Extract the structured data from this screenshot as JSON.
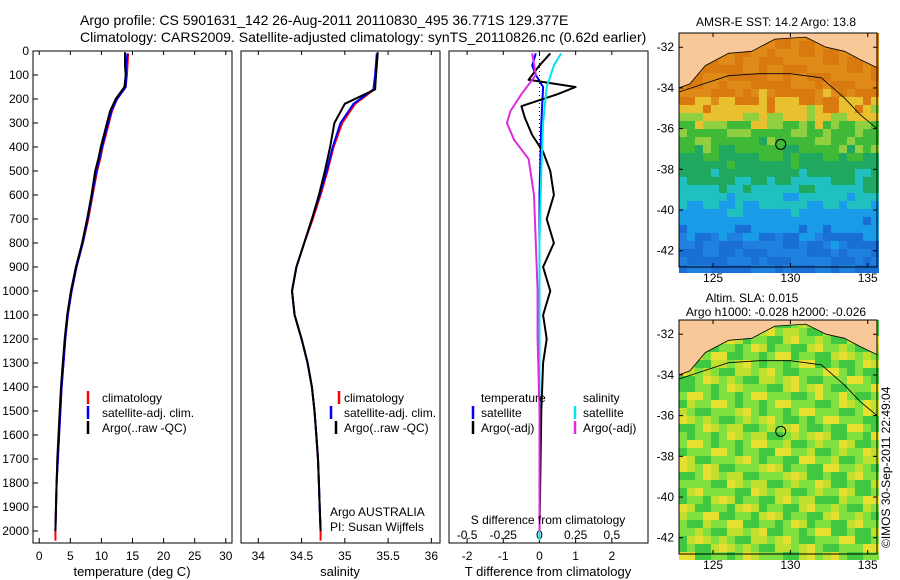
{
  "header": {
    "line1": "Argo profile: CS 5901631_142 26-Aug-2011 20110830_495 36.771S 129.377E",
    "line2": "Climatology: CARS2009. Satellite-adjusted climatology: synTS_20110826.nc (0.62d earlier)"
  },
  "colors": {
    "climatology": "#ff0000",
    "satellite": "#0000ff",
    "argo": "#000000",
    "diff_sat": "#00e5ee",
    "diff_argo": "#e02ae0",
    "land": "#f8c898"
  },
  "icons": {
    "timestamp": "text-rotated"
  },
  "credits": {
    "source": "Argo AUSTRALIA",
    "pi": "PI: Susan Wijffels",
    "timestamp": "©IMOS 30-Sep-2011 22:49:04"
  },
  "depth_ticks": [
    "0",
    "100",
    "200",
    "300",
    "400",
    "500",
    "600",
    "700",
    "800",
    "900",
    "1000",
    "1100",
    "1200",
    "1300",
    "1400",
    "1500",
    "1600",
    "1700",
    "1800",
    "1900",
    "2000"
  ],
  "maps": {
    "sst_title": "AMSR-E SST: 14.2 Argo: 13.8",
    "sla_title1": "Altim. SLA: 0.015",
    "sla_title2": "Argo h1000: -0.028 h2000: -0.026",
    "lat_ticks": [
      "-32",
      "-34",
      "-36",
      "-38",
      "-40",
      "-42"
    ],
    "lon_ticks": [
      "125",
      "130",
      "135"
    ]
  },
  "chart_data": [
    {
      "type": "line",
      "name": "temperature",
      "xlabel": "temperature (deg C)",
      "ylabel": "",
      "xlim": [
        -1,
        31
      ],
      "ylim": [
        2050,
        0
      ],
      "xticks": [
        "0",
        "5",
        "10",
        "15",
        "20",
        "25",
        "30"
      ],
      "legend": [
        "climatology",
        "satellite-adj. clim.",
        "Argo(..raw -QC)"
      ],
      "legend_position": "lower-center",
      "series": [
        {
          "name": "climatology",
          "color": "#ff0000",
          "points": [
            [
              14.3,
              10
            ],
            [
              14.2,
              60
            ],
            [
              14.1,
              100
            ],
            [
              13.9,
              150
            ],
            [
              12.5,
              200
            ],
            [
              11.7,
              250
            ],
            [
              11.2,
              300
            ],
            [
              10.7,
              350
            ],
            [
              10.2,
              400
            ],
            [
              9.8,
              450
            ],
            [
              9.3,
              500
            ],
            [
              8.6,
              600
            ],
            [
              7.9,
              700
            ],
            [
              7.0,
              800
            ],
            [
              6.0,
              900
            ],
            [
              5.2,
              1000
            ],
            [
              4.6,
              1100
            ],
            [
              4.2,
              1200
            ],
            [
              3.9,
              1300
            ],
            [
              3.6,
              1400
            ],
            [
              3.4,
              1500
            ],
            [
              3.2,
              1600
            ],
            [
              3.0,
              1700
            ],
            [
              2.8,
              1800
            ],
            [
              2.7,
              1900
            ],
            [
              2.6,
              2000
            ],
            [
              2.6,
              2040
            ]
          ]
        },
        {
          "name": "satellite-adj. clim.",
          "color": "#0000ff",
          "points": [
            [
              14.2,
              10
            ],
            [
              14.0,
              60
            ],
            [
              14.0,
              100
            ],
            [
              13.9,
              150
            ],
            [
              12.5,
              200
            ],
            [
              11.6,
              250
            ],
            [
              11.1,
              300
            ],
            [
              10.6,
              350
            ],
            [
              10.1,
              400
            ],
            [
              9.7,
              450
            ],
            [
              9.2,
              500
            ],
            [
              8.5,
              600
            ],
            [
              7.8,
              700
            ],
            [
              7.0,
              800
            ],
            [
              6.0,
              900
            ],
            [
              5.2,
              1000
            ],
            [
              4.6,
              1100
            ],
            [
              4.2,
              1200
            ],
            [
              3.9,
              1300
            ],
            [
              3.6,
              1400
            ],
            [
              3.4,
              1500
            ],
            [
              3.2,
              1600
            ],
            [
              3.0,
              1700
            ],
            [
              2.8,
              1800
            ],
            [
              2.7,
              1900
            ],
            [
              2.6,
              2000
            ]
          ]
        },
        {
          "name": "Argo(..raw -QC)",
          "color": "#000000",
          "points": [
            [
              13.8,
              5
            ],
            [
              13.8,
              60
            ],
            [
              13.9,
              100
            ],
            [
              13.7,
              150
            ],
            [
              12.3,
              200
            ],
            [
              11.4,
              250
            ],
            [
              10.9,
              300
            ],
            [
              10.4,
              350
            ],
            [
              9.9,
              400
            ],
            [
              9.5,
              450
            ],
            [
              9.0,
              500
            ],
            [
              8.4,
              600
            ],
            [
              7.7,
              700
            ],
            [
              6.9,
              800
            ],
            [
              5.9,
              900
            ],
            [
              5.1,
              1000
            ],
            [
              4.5,
              1100
            ],
            [
              4.1,
              1200
            ],
            [
              3.8,
              1300
            ],
            [
              3.5,
              1400
            ],
            [
              3.3,
              1500
            ],
            [
              3.1,
              1600
            ],
            [
              2.9,
              1700
            ],
            [
              2.8,
              1800
            ],
            [
              2.7,
              1900
            ],
            [
              2.6,
              2000
            ]
          ]
        }
      ]
    },
    {
      "type": "line",
      "name": "salinity",
      "xlabel": "salinity",
      "ylabel": "",
      "xlim": [
        33.8,
        36.1
      ],
      "ylim": [
        2050,
        0
      ],
      "xticks": [
        "34",
        "34.5",
        "35",
        "35.5",
        "36"
      ],
      "legend": [
        "climatology",
        "satellite-adj. clim.",
        "Argo(..raw -QC)"
      ],
      "legend_position": "lower-center",
      "series": [
        {
          "name": "climatology",
          "color": "#ff0000",
          "points": [
            [
              35.38,
              10
            ],
            [
              35.36,
              100
            ],
            [
              35.34,
              160
            ],
            [
              35.12,
              220
            ],
            [
              34.97,
              300
            ],
            [
              34.87,
              400
            ],
            [
              34.8,
              500
            ],
            [
              34.72,
              600
            ],
            [
              34.63,
              700
            ],
            [
              34.53,
              800
            ],
            [
              34.44,
              900
            ],
            [
              34.39,
              1000
            ],
            [
              34.42,
              1100
            ],
            [
              34.5,
              1200
            ],
            [
              34.57,
              1300
            ],
            [
              34.62,
              1400
            ],
            [
              34.65,
              1500
            ],
            [
              34.67,
              1600
            ],
            [
              34.69,
              1700
            ],
            [
              34.7,
              1800
            ],
            [
              34.71,
              1900
            ],
            [
              34.72,
              2000
            ],
            [
              34.72,
              2040
            ]
          ]
        },
        {
          "name": "satellite-adj. clim.",
          "color": "#0000ff",
          "points": [
            [
              35.37,
              10
            ],
            [
              35.35,
              100
            ],
            [
              35.33,
              160
            ],
            [
              35.1,
              220
            ],
            [
              34.95,
              300
            ],
            [
              34.86,
              400
            ],
            [
              34.79,
              500
            ],
            [
              34.71,
              600
            ],
            [
              34.62,
              700
            ],
            [
              34.53,
              800
            ],
            [
              34.44,
              900
            ],
            [
              34.39,
              1000
            ],
            [
              34.42,
              1100
            ],
            [
              34.5,
              1200
            ],
            [
              34.57,
              1300
            ],
            [
              34.62,
              1400
            ],
            [
              34.65,
              1500
            ],
            [
              34.67,
              1600
            ],
            [
              34.69,
              1700
            ],
            [
              34.7,
              1800
            ],
            [
              34.71,
              1900
            ],
            [
              34.72,
              2000
            ]
          ]
        },
        {
          "name": "Argo(..raw -QC)",
          "color": "#000000",
          "points": [
            [
              35.38,
              5
            ],
            [
              35.36,
              100
            ],
            [
              35.35,
              160
            ],
            [
              35.0,
              220
            ],
            [
              34.88,
              300
            ],
            [
              34.83,
              400
            ],
            [
              34.77,
              500
            ],
            [
              34.7,
              600
            ],
            [
              34.62,
              700
            ],
            [
              34.53,
              800
            ],
            [
              34.44,
              900
            ],
            [
              34.39,
              1000
            ],
            [
              34.42,
              1100
            ],
            [
              34.5,
              1200
            ],
            [
              34.57,
              1300
            ],
            [
              34.62,
              1400
            ],
            [
              34.65,
              1500
            ],
            [
              34.67,
              1600
            ],
            [
              34.69,
              1700
            ],
            [
              34.7,
              1800
            ],
            [
              34.71,
              1900
            ],
            [
              34.72,
              2000
            ]
          ]
        }
      ]
    },
    {
      "type": "line",
      "name": "difference",
      "xlabel": "T difference from climatology",
      "xlabel_top": "S difference from climatology",
      "ylabel": "",
      "xlim": [
        -2.5,
        3
      ],
      "ylim": [
        2050,
        0
      ],
      "xticks": [
        "-2",
        "-1",
        "0",
        "1",
        "2"
      ],
      "xticks_top": [
        "-0.5",
        "-0.25",
        "0",
        "0.25",
        "0.5"
      ],
      "legend": [
        {
          "heading": "temperature",
          "items": [
            "satellite",
            "Argo(-adj)"
          ]
        },
        {
          "heading": "salinity",
          "items": [
            "satellite",
            "Argo(-adj)"
          ]
        }
      ],
      "legend_position": "lower-center",
      "series": [
        {
          "name": "satellite",
          "color": "#0000ff",
          "points": [
            [
              -0.1,
              10
            ],
            [
              -0.2,
              60
            ],
            [
              -0.1,
              100
            ],
            [
              0.1,
              150
            ],
            [
              0.05,
              300
            ],
            [
              0.0,
              600
            ],
            [
              0.0,
              1000
            ],
            [
              0.0,
              1500
            ],
            [
              0.0,
              2040
            ]
          ]
        },
        {
          "name": "Argo(-adj)",
          "color": "#000000",
          "points": [
            [
              0.3,
              10
            ],
            [
              0.0,
              60
            ],
            [
              -0.3,
              120
            ],
            [
              1.0,
              150
            ],
            [
              0.5,
              180
            ],
            [
              -0.5,
              230
            ],
            [
              -0.4,
              280
            ],
            [
              -0.2,
              350
            ],
            [
              0.1,
              420
            ],
            [
              0.3,
              500
            ],
            [
              0.4,
              600
            ],
            [
              0.2,
              700
            ],
            [
              0.4,
              800
            ],
            [
              0.1,
              900
            ],
            [
              0.3,
              1000
            ],
            [
              0.1,
              1100
            ],
            [
              0.2,
              1200
            ],
            [
              0.1,
              1300
            ],
            [
              0.05,
              1500
            ],
            [
              0.0,
              2000
            ]
          ]
        },
        {
          "name": "satellite",
          "color": "#00e5ee",
          "points": [
            [
              0.6,
              10
            ],
            [
              0.4,
              60
            ],
            [
              0.2,
              150
            ],
            [
              0.1,
              300
            ],
            [
              0.05,
              500
            ],
            [
              0.0,
              800
            ],
            [
              0.0,
              1200
            ],
            [
              0.0,
              2040
            ]
          ]
        },
        {
          "name": "Argo(-adj)",
          "color": "#e02ae0",
          "points": [
            [
              -0.2,
              10
            ],
            [
              -0.1,
              100
            ],
            [
              -0.5,
              180
            ],
            [
              -0.8,
              250
            ],
            [
              -0.9,
              300
            ],
            [
              -0.7,
              370
            ],
            [
              -0.3,
              450
            ],
            [
              -0.15,
              600
            ],
            [
              -0.1,
              800
            ],
            [
              -0.05,
              1000
            ],
            [
              -0.05,
              1200
            ],
            [
              0.0,
              1500
            ],
            [
              0.0,
              2000
            ]
          ]
        }
      ]
    }
  ]
}
